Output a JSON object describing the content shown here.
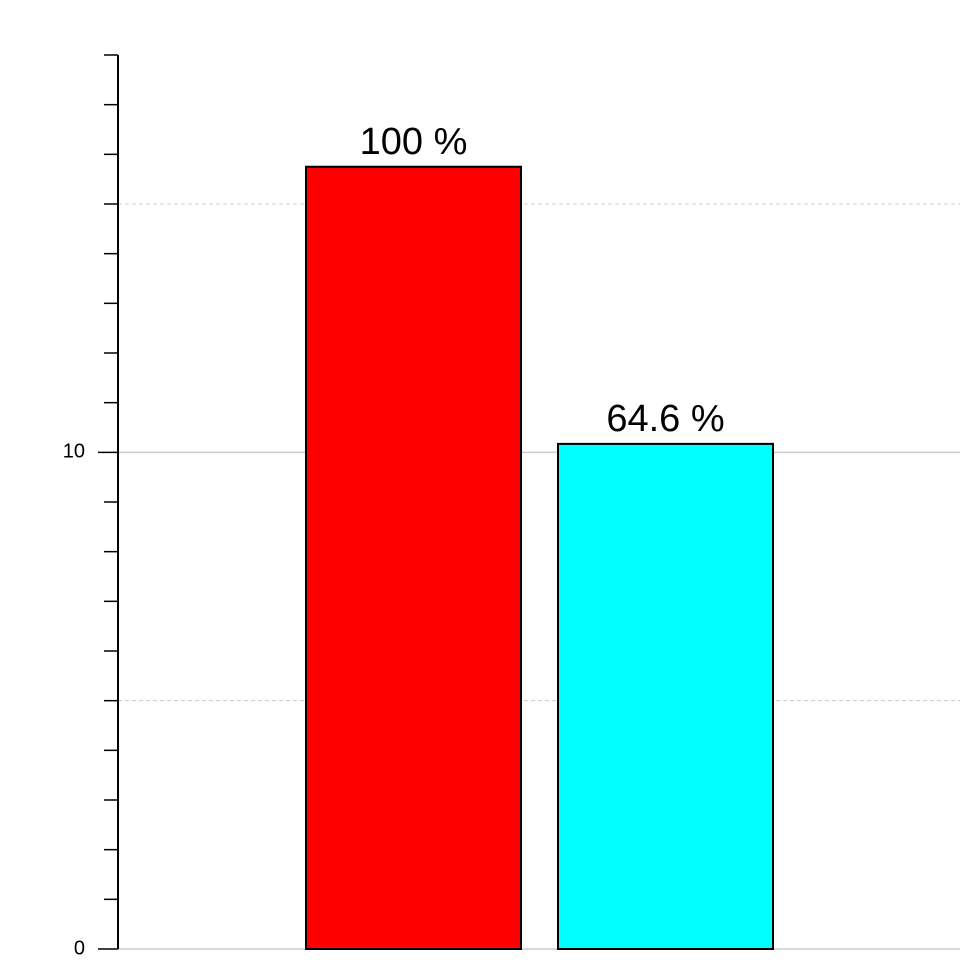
{
  "chart_data": {
    "type": "bar",
    "categories": [
      null,
      null
    ],
    "values": [
      15.75,
      10.17
    ],
    "value_labels": [
      "100 %",
      "64.6 %"
    ],
    "colors": [
      "#ff0000",
      "#00ffff"
    ],
    "ylim": [
      0,
      18
    ],
    "yticks": [
      0,
      10
    ],
    "minor_yticks": [
      1,
      2,
      3,
      4,
      5,
      6,
      7,
      8,
      9,
      11,
      12,
      13,
      14,
      15,
      16,
      17,
      18
    ],
    "dashed_grid": [
      5,
      15
    ],
    "grid": true
  }
}
